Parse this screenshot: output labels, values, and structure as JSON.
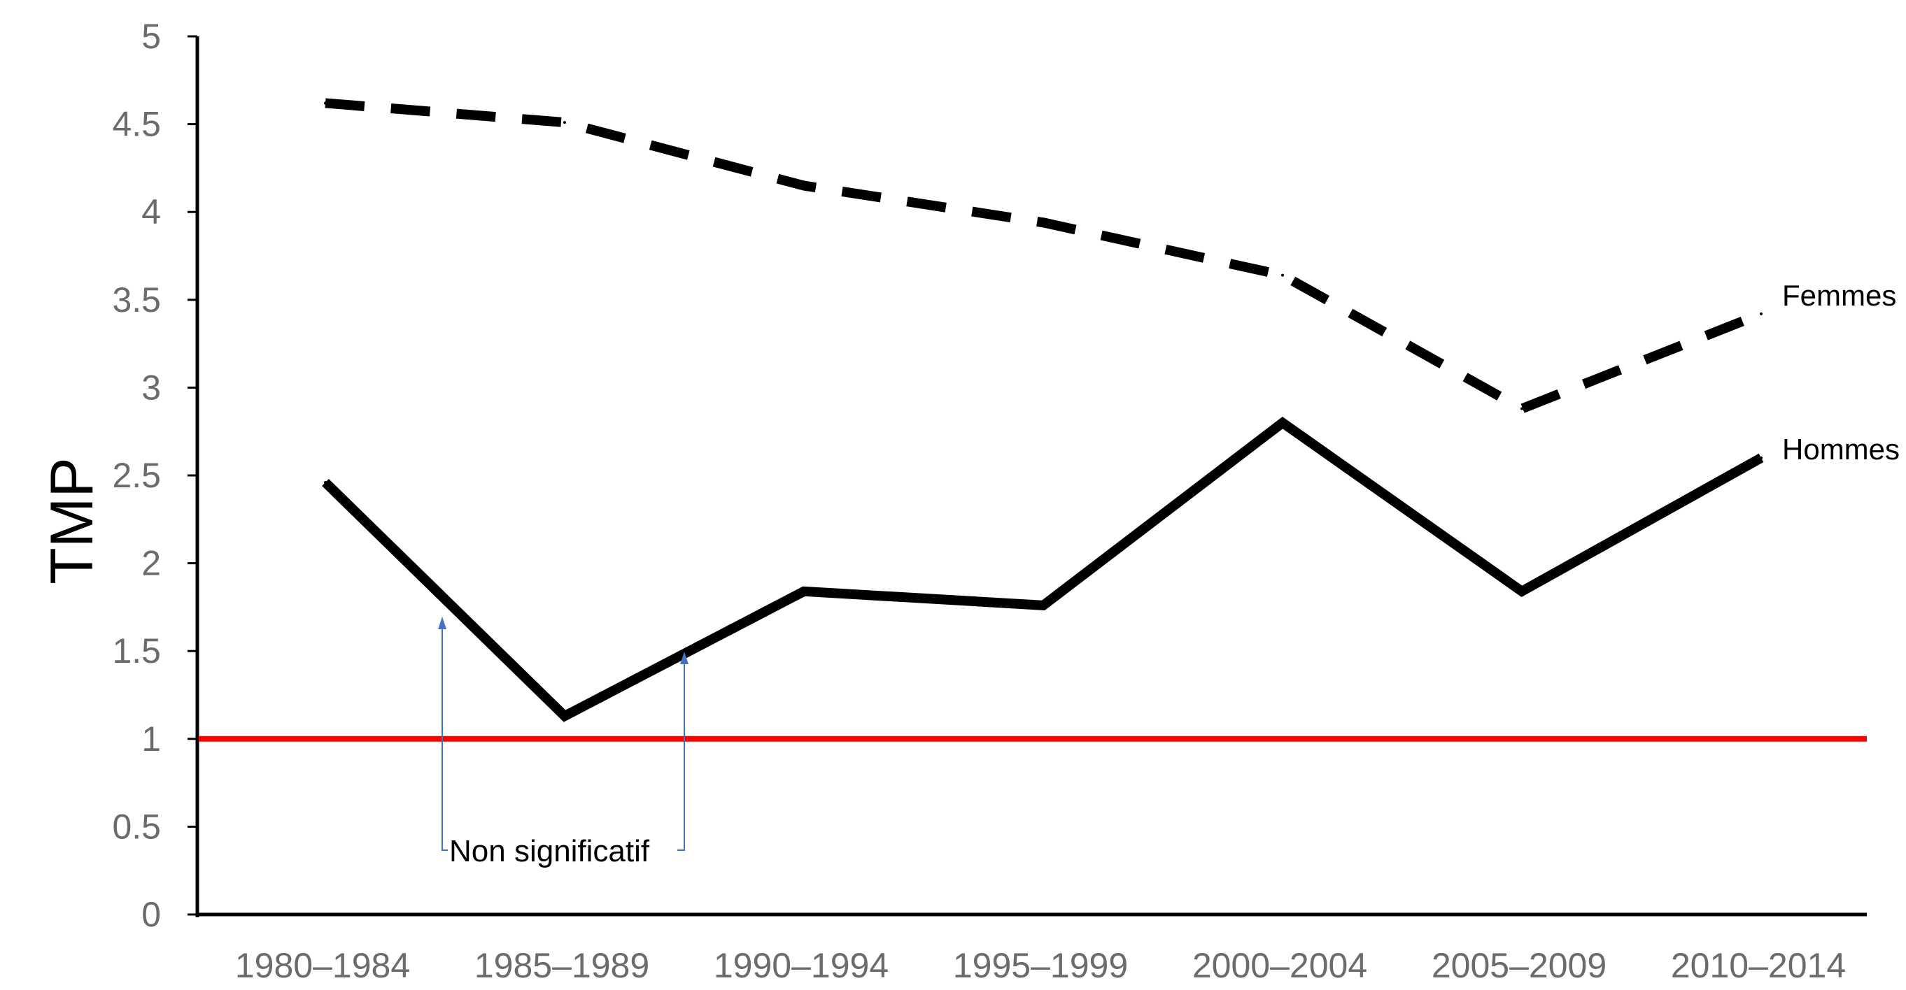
{
  "chart_data": {
    "type": "line",
    "ylabel": "TMP",
    "xlabel": "",
    "ylim": [
      0,
      5
    ],
    "yticks": [
      "0",
      "0.5",
      "1",
      "1.5",
      "2",
      "2.5",
      "3",
      "3.5",
      "4",
      "4.5",
      "5"
    ],
    "categories": [
      "1980–1984",
      "1985–1989",
      "1990–1994",
      "1995–1999",
      "2000–2004",
      "2005–2009",
      "2010–2014"
    ],
    "series": [
      {
        "name": "Femmes",
        "style": "dashed",
        "color": "#000000",
        "values": [
          4.62,
          4.51,
          4.15,
          3.94,
          3.64,
          2.88,
          3.42
        ]
      },
      {
        "name": "Hommes",
        "style": "solid",
        "color": "#000000",
        "values": [
          2.46,
          1.13,
          1.84,
          1.76,
          2.8,
          1.84,
          2.6
        ]
      }
    ],
    "reference_line": {
      "value": 1,
      "color": "#ff0000"
    },
    "annotation": {
      "text": "Non significatif",
      "arrow_color": "#4472c4"
    },
    "grid": false
  }
}
